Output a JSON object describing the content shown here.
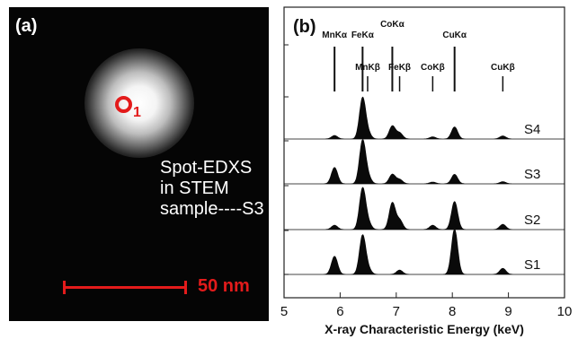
{
  "panel_a": {
    "label": "(a)",
    "marker_number": "1",
    "caption_lines": [
      "Spot-EDXS",
      "in STEM",
      "sample----S3"
    ],
    "scale_label": "50 nm",
    "colors": {
      "annotation": "#e31b1b",
      "background": "#050505"
    }
  },
  "chart_data": {
    "type": "line",
    "panel_label": "(b)",
    "xlabel": "X-ray Characteristic Energy (keV)",
    "ylabel": "",
    "xlim": [
      5,
      10
    ],
    "xticks": [
      5,
      6,
      7,
      8,
      9,
      10
    ],
    "xtick_labels": [
      "5",
      "6",
      "7",
      "8",
      "9",
      "10"
    ],
    "grid": false,
    "reference_lines": [
      {
        "name": "MnKα",
        "x": 5.9,
        "label_row": "upper"
      },
      {
        "name": "FeKα",
        "x": 6.4,
        "label_row": "upper"
      },
      {
        "name": "CoKα",
        "x": 6.93,
        "label_row": "upper"
      },
      {
        "name": "CuKα",
        "x": 8.04,
        "label_row": "upper"
      },
      {
        "name": "MnKβ",
        "x": 6.49,
        "label_row": "lower"
      },
      {
        "name": "FeKβ",
        "x": 7.06,
        "label_row": "lower"
      },
      {
        "name": "CoKβ",
        "x": 7.65,
        "label_row": "lower"
      },
      {
        "name": "CuKβ",
        "x": 8.9,
        "label_row": "lower"
      }
    ],
    "series": [
      {
        "name": "S4",
        "peaks": [
          [
            5.9,
            0.08
          ],
          [
            6.4,
            0.95
          ],
          [
            6.5,
            0.12
          ],
          [
            6.93,
            0.3
          ],
          [
            7.06,
            0.14
          ],
          [
            7.65,
            0.05
          ],
          [
            8.04,
            0.28
          ],
          [
            8.9,
            0.07
          ]
        ]
      },
      {
        "name": "S3",
        "peaks": [
          [
            5.9,
            0.38
          ],
          [
            6.4,
            1.0
          ],
          [
            6.5,
            0.15
          ],
          [
            6.93,
            0.22
          ],
          [
            7.06,
            0.1
          ],
          [
            7.65,
            0.04
          ],
          [
            8.04,
            0.22
          ],
          [
            8.9,
            0.05
          ]
        ]
      },
      {
        "name": "S2",
        "peaks": [
          [
            5.9,
            0.1
          ],
          [
            6.4,
            0.95
          ],
          [
            6.5,
            0.15
          ],
          [
            6.93,
            0.62
          ],
          [
            7.06,
            0.22
          ],
          [
            7.65,
            0.1
          ],
          [
            8.04,
            0.65
          ],
          [
            8.9,
            0.12
          ]
        ]
      },
      {
        "name": "S1",
        "peaks": [
          [
            5.9,
            0.42
          ],
          [
            6.4,
            0.9
          ],
          [
            6.5,
            0.12
          ],
          [
            7.06,
            0.1
          ],
          [
            8.04,
            1.05
          ],
          [
            8.9,
            0.14
          ]
        ]
      }
    ]
  }
}
